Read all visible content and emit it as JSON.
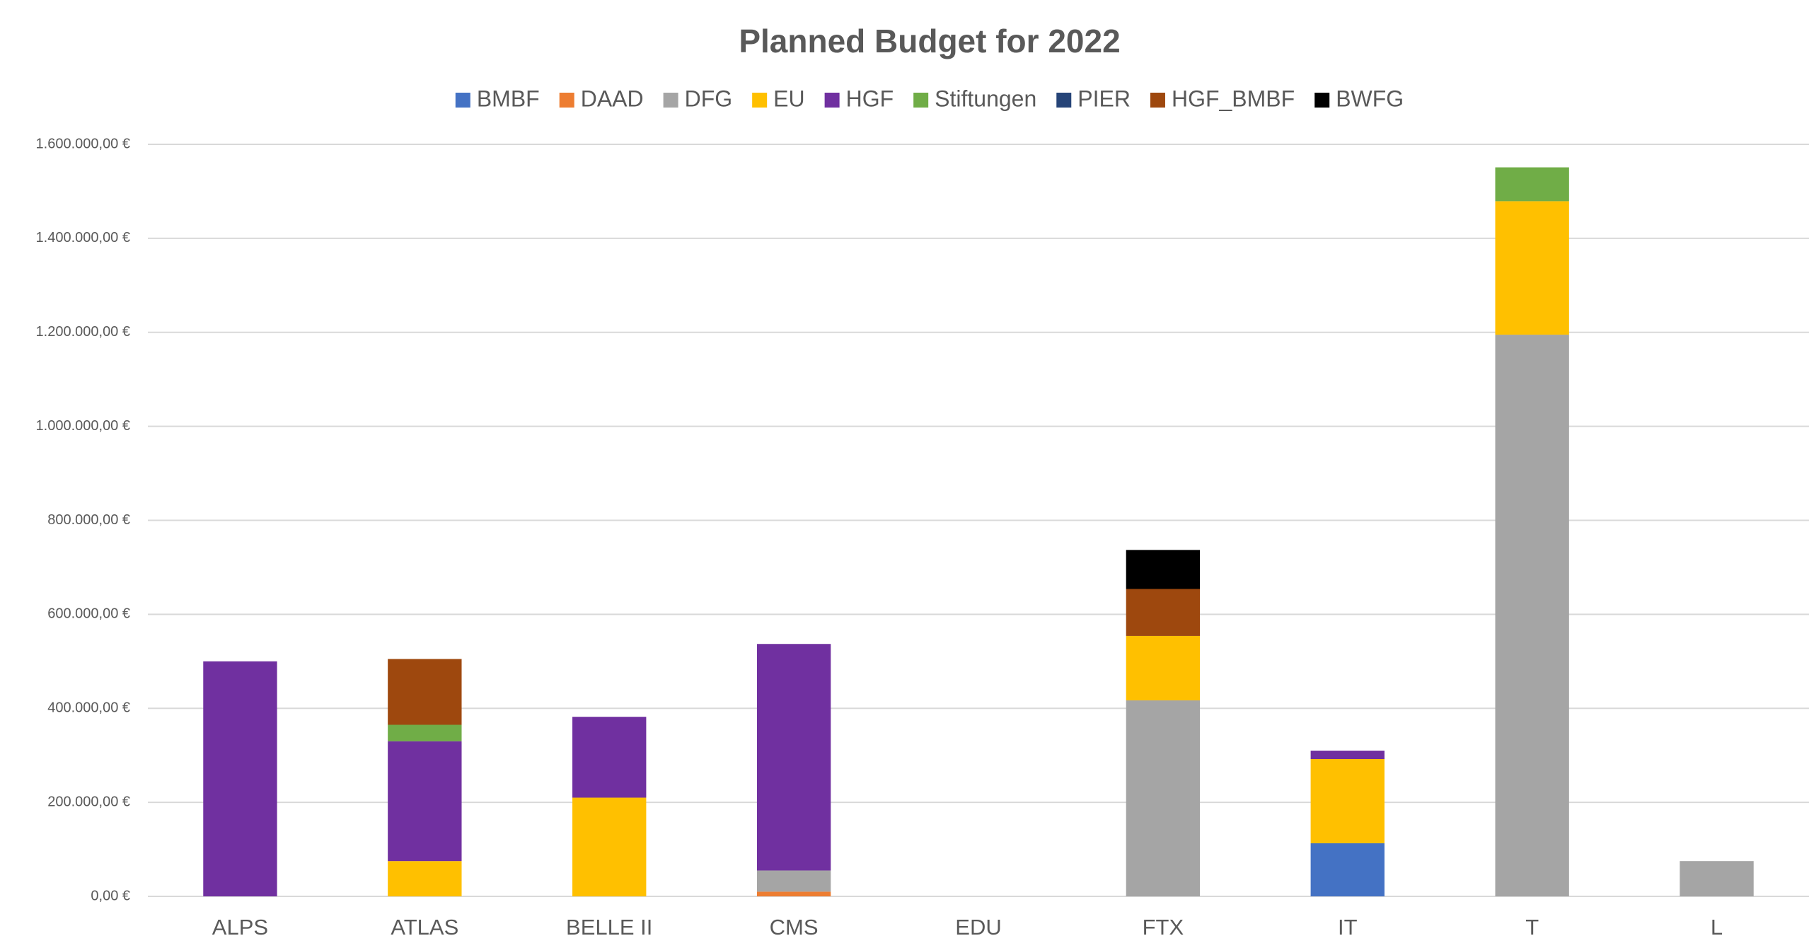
{
  "chart_data": {
    "type": "stacked_bar",
    "title": "Planned Budget for 2022",
    "categories": [
      "ALPS",
      "ATLAS",
      "BELLE II",
      "CMS",
      "EDU",
      "FTX",
      "IT",
      "T",
      "L"
    ],
    "series": [
      {
        "name": "BMBF",
        "color": "#4472c4",
        "values": [
          0,
          0,
          0,
          0,
          0,
          0,
          113000,
          0,
          0
        ]
      },
      {
        "name": "DAAD",
        "color": "#ed7d31",
        "values": [
          0,
          0,
          0,
          10000,
          0,
          0,
          0,
          0,
          0
        ]
      },
      {
        "name": "DFG",
        "color": "#a5a5a5",
        "values": [
          0,
          0,
          0,
          45000,
          0,
          417000,
          0,
          1195000,
          75000
        ]
      },
      {
        "name": "EU",
        "color": "#ffc000",
        "values": [
          0,
          75000,
          210000,
          0,
          0,
          137000,
          179000,
          284000,
          0
        ]
      },
      {
        "name": "HGF",
        "color": "#7030a0",
        "values": [
          500000,
          255000,
          172000,
          482000,
          0,
          0,
          18000,
          0,
          0
        ]
      },
      {
        "name": "Stiftungen",
        "color": "#70ad47",
        "values": [
          0,
          35000,
          0,
          0,
          0,
          0,
          0,
          72000,
          0
        ]
      },
      {
        "name": "PIER",
        "color": "#264478",
        "values": [
          0,
          0,
          0,
          0,
          0,
          0,
          0,
          0,
          0
        ]
      },
      {
        "name": "HGF_BMBF",
        "color": "#9e480e",
        "values": [
          0,
          140000,
          0,
          0,
          0,
          100000,
          0,
          0,
          0
        ]
      },
      {
        "name": "BWFG",
        "color": "#000000",
        "values": [
          0,
          0,
          0,
          0,
          0,
          83000,
          0,
          0,
          0
        ]
      }
    ],
    "ylim": [
      0,
      1600000
    ],
    "yticks": [
      {
        "value": 0,
        "label": "0,00 €"
      },
      {
        "value": 200000,
        "label": "200.000,00 €"
      },
      {
        "value": 400000,
        "label": "400.000,00 €"
      },
      {
        "value": 600000,
        "label": "600.000,00 €"
      },
      {
        "value": 800000,
        "label": "800.000,00 €"
      },
      {
        "value": 1000000,
        "label": "1.000.000,00 €"
      },
      {
        "value": 1200000,
        "label": "1.200.000,00 €"
      },
      {
        "value": 1400000,
        "label": "1.400.000,00 €"
      },
      {
        "value": 1600000,
        "label": "1.600.000,00 €"
      }
    ],
    "grid": true,
    "legend": "top"
  }
}
